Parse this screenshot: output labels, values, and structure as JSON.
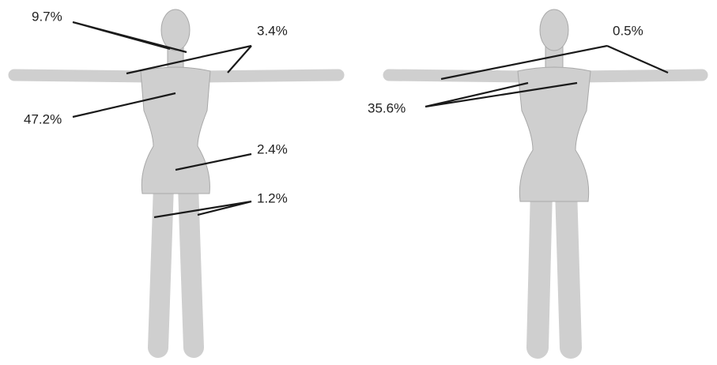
{
  "front": {
    "labels": [
      "9.7%",
      "3.4%",
      "47.2%",
      "2.4%",
      "1.2%"
    ]
  },
  "back": {
    "labels": [
      "0.5%",
      "35.6%"
    ]
  }
}
